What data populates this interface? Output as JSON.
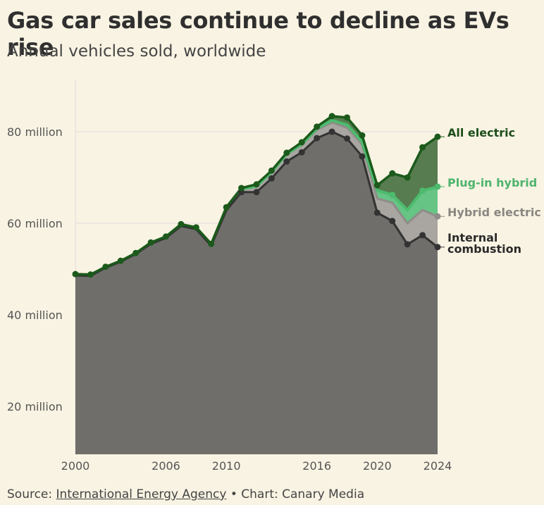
{
  "header": {
    "title": "Gas car sales continue to decline as EVs rise",
    "subtitle": "Annual vehicles sold, worldwide"
  },
  "footer": {
    "source_prefix": "Source: ",
    "source_link": "International Energy Agency",
    "separator": " • ",
    "credit": "Chart: Canary Media"
  },
  "colors": {
    "background": "#f9f3e3",
    "ice_fill": "#6f6e6a",
    "ice_line": "#333333",
    "hybrid_fill": "#a9a6a1",
    "hybrid_line": "#8f8c88",
    "phev_fill": "#66c485",
    "phev_line": "#4dbb6e",
    "bev_fill": "#567c4f",
    "bev_line": "#1b5a1b",
    "grid": "#efe6e0"
  },
  "chart_data": {
    "type": "area",
    "stacked": true,
    "title": "Gas car sales continue to decline as EVs rise",
    "subtitle": "Annual vehicles sold, worldwide",
    "xlabel": "",
    "ylabel": "",
    "x": [
      2000,
      2001,
      2002,
      2003,
      2004,
      2005,
      2006,
      2007,
      2008,
      2009,
      2010,
      2011,
      2012,
      2013,
      2014,
      2015,
      2016,
      2017,
      2018,
      2019,
      2020,
      2021,
      2022,
      2023,
      2024
    ],
    "x_ticks": [
      2000,
      2006,
      2010,
      2016,
      2020,
      2024
    ],
    "y_ticks": [
      20,
      40,
      60,
      80
    ],
    "y_tick_labels": [
      "20 million",
      "40 million",
      "60 million",
      "80 million"
    ],
    "ylim": [
      9.5,
      90
    ],
    "xlim": [
      2000,
      2024
    ],
    "units": "million vehicles",
    "grid": "horizontal at y ticks, vertical at 2000",
    "legend": "direct labels at right end",
    "series": [
      {
        "name": "Internal combustion",
        "label": "Internal combustion",
        "label_lines": [
          "Internal",
          "combustion"
        ],
        "values": [
          48.6,
          48.5,
          50.3,
          51.6,
          53.3,
          55.5,
          56.8,
          59.4,
          58.7,
          55.1,
          62.8,
          66.8,
          66.8,
          69.8,
          73.5,
          75.5,
          78.6,
          80.0,
          78.5,
          74.6,
          62.3,
          60.5,
          55.4,
          57.4,
          54.8
        ]
      },
      {
        "name": "Hybrid electric",
        "label": "Hybrid electric",
        "label_lines": [
          "Hybrid electric"
        ],
        "values": [
          0.05,
          0.1,
          0.1,
          0.1,
          0.15,
          0.2,
          0.25,
          0.35,
          0.35,
          0.35,
          0.5,
          0.6,
          1.2,
          1.3,
          1.5,
          1.6,
          1.8,
          2.0,
          2.4,
          2.6,
          3.1,
          4.0,
          4.6,
          5.5,
          6.7
        ]
      },
      {
        "name": "Plug-in hybrid",
        "label": "Plug-in hybrid",
        "label_lines": [
          "Plug-in hybrid"
        ],
        "values": [
          0,
          0,
          0,
          0,
          0,
          0,
          0,
          0,
          0,
          0,
          0,
          0.05,
          0.1,
          0.1,
          0.1,
          0.2,
          0.3,
          0.5,
          0.6,
          0.6,
          1.8,
          1.7,
          2.9,
          4.2,
          6.5
        ]
      },
      {
        "name": "All electric",
        "label": "All electric",
        "label_lines": [
          "All electric"
        ],
        "values": [
          0.25,
          0.2,
          0.1,
          0.1,
          0.05,
          0.1,
          0.05,
          0.05,
          0.05,
          0.05,
          0.2,
          0.25,
          0.4,
          0.3,
          0.3,
          0.4,
          0.4,
          0.9,
          1.6,
          1.4,
          1.1,
          4.7,
          7.1,
          9.5,
          10.9
        ]
      }
    ]
  }
}
